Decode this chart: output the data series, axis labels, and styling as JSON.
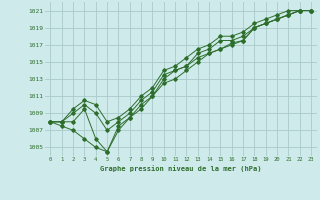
{
  "background_color": "#ceeaea",
  "grid_color": "#aacaca",
  "line_color": "#2d6e2d",
  "title": "Graphe pression niveau de la mer (hPa)",
  "xlim": [
    -0.5,
    23.5
  ],
  "ylim": [
    1004,
    1022
  ],
  "yticks": [
    1005,
    1007,
    1009,
    1011,
    1013,
    1015,
    1017,
    1019,
    1021
  ],
  "xticks": [
    0,
    1,
    2,
    3,
    4,
    5,
    6,
    7,
    8,
    9,
    10,
    11,
    12,
    13,
    14,
    15,
    16,
    17,
    18,
    19,
    20,
    21,
    22,
    23
  ],
  "series": [
    [
      1008,
      1008,
      1008,
      1009.5,
      1006,
      1004.5,
      1007.5,
      1008.5,
      1010,
      1011,
      1013,
      1014,
      1014.5,
      1015.5,
      1016,
      1016.5,
      1017,
      1017.5,
      1019,
      1019.5,
      1020,
      1020.5,
      1021,
      1021
    ],
    [
      1008,
      1007.5,
      1007,
      1006,
      1005,
      1004.5,
      1007,
      1008.5,
      1009.5,
      1011,
      1012.5,
      1013,
      1014,
      1015,
      1016,
      1016.5,
      1017.2,
      1017.5,
      1019,
      1019.5,
      1020,
      1020.5,
      1021,
      1021
    ],
    [
      1008,
      1008,
      1009,
      1010,
      1009,
      1007,
      1008,
      1009,
      1010.5,
      1011.5,
      1013.5,
      1014,
      1014.5,
      1016,
      1016.5,
      1017.5,
      1017.5,
      1018,
      1019,
      1019.5,
      1020,
      1020.5,
      1021,
      1021
    ],
    [
      1008,
      1008,
      1009.5,
      1010.5,
      1010,
      1008,
      1008.5,
      1009.5,
      1011,
      1012,
      1014,
      1014.5,
      1015.5,
      1016.5,
      1017,
      1018,
      1018,
      1018.5,
      1019.5,
      1020,
      1020.5,
      1021,
      1021,
      1021
    ]
  ]
}
